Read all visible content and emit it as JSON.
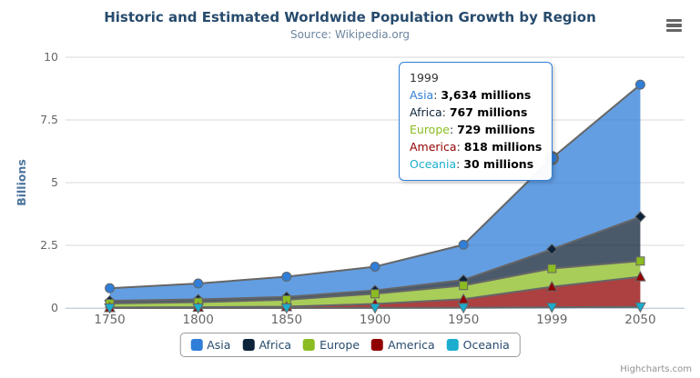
{
  "chart_data": {
    "type": "area",
    "stacking": "normal",
    "title": "Historic and Estimated Worldwide Population Growth by Region",
    "subtitle": "Source: Wikipedia.org",
    "ylabel": "Billions",
    "ylim": [
      0,
      10
    ],
    "yticks": [
      0,
      2.5,
      5,
      7.5,
      10
    ],
    "grid": true,
    "legend_position": "bottom",
    "categories": [
      "1750",
      "1800",
      "1850",
      "1900",
      "1950",
      "1999",
      "2050"
    ],
    "series": [
      {
        "name": "Asia",
        "color": "#2f7ed8",
        "marker": "circle",
        "values": [
          502,
          635,
          809,
          947,
          1402,
          3634,
          5268
        ]
      },
      {
        "name": "Africa",
        "color": "#0d233a",
        "marker": "diamond",
        "values": [
          106,
          107,
          111,
          133,
          221,
          767,
          1766
        ]
      },
      {
        "name": "Europe",
        "color": "#8bbc21",
        "marker": "square",
        "values": [
          163,
          203,
          276,
          408,
          547,
          729,
          628
        ]
      },
      {
        "name": "America",
        "color": "#910000",
        "marker": "triangle",
        "values": [
          18,
          31,
          54,
          156,
          339,
          818,
          1201
        ]
      },
      {
        "name": "Oceania",
        "color": "#1aadce",
        "marker": "triangle-down",
        "values": [
          2,
          2,
          2,
          6,
          13,
          30,
          46
        ]
      }
    ],
    "hover_point": {
      "series": "Asia",
      "category": "1999"
    }
  },
  "tooltip": {
    "header": "1999",
    "rows": [
      {
        "name": "Asia",
        "value": "3,634 millions"
      },
      {
        "name": "Africa",
        "value": "767 millions"
      },
      {
        "name": "Europe",
        "value": "729 millions"
      },
      {
        "name": "America",
        "value": "818 millions"
      },
      {
        "name": "Oceania",
        "value": "30 millions"
      }
    ]
  },
  "credits": "Highcharts.com",
  "colors": {
    "title": "#274b6d",
    "subtitle": "#6d869f",
    "axis_label": "#666666",
    "axis_title": "#4d759e",
    "series_line": "#666666",
    "grid": "#d8d8d8",
    "axis_line": "#c0d0e0",
    "tooltip_border": "#2f7ed8",
    "legend_text": "#274b6d",
    "fill_opacity": 0.75
  }
}
